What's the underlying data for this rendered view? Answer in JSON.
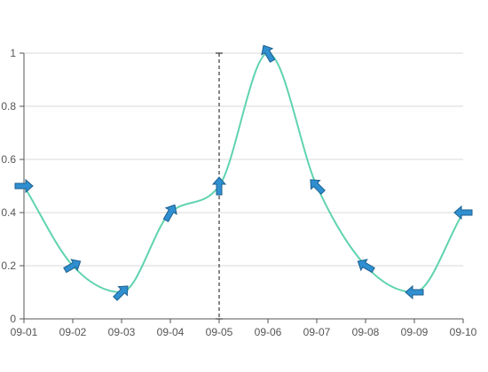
{
  "chart_data": {
    "type": "line",
    "categories": [
      "09-01",
      "09-02",
      "09-03",
      "09-04",
      "09-05",
      "09-06",
      "09-07",
      "09-08",
      "09-09",
      "09-10"
    ],
    "series": [
      {
        "values": [
          0.5,
          0.2,
          0.1,
          0.4,
          0.5,
          1,
          0.5,
          0.2,
          0.1,
          0.4
        ],
        "wind_direction_deg": [
          90,
          60,
          45,
          30,
          0,
          330,
          315,
          300,
          270,
          270
        ]
      }
    ],
    "ylim": [
      0,
      1
    ],
    "yticks": [
      "0",
      "0.2",
      "0.4",
      "0.6",
      "0.8",
      "1"
    ],
    "marker_line_category": "09-05",
    "grid": true,
    "colors": {
      "line": "#5fd3b0",
      "arrow_fill": "#2f8fd0",
      "arrow_stroke": "#1d5f8f",
      "grid": "#d9d9d9",
      "axis": "#555555",
      "marker_line": "#111111"
    },
    "icons": {
      "marker": "arrow-icon"
    }
  }
}
